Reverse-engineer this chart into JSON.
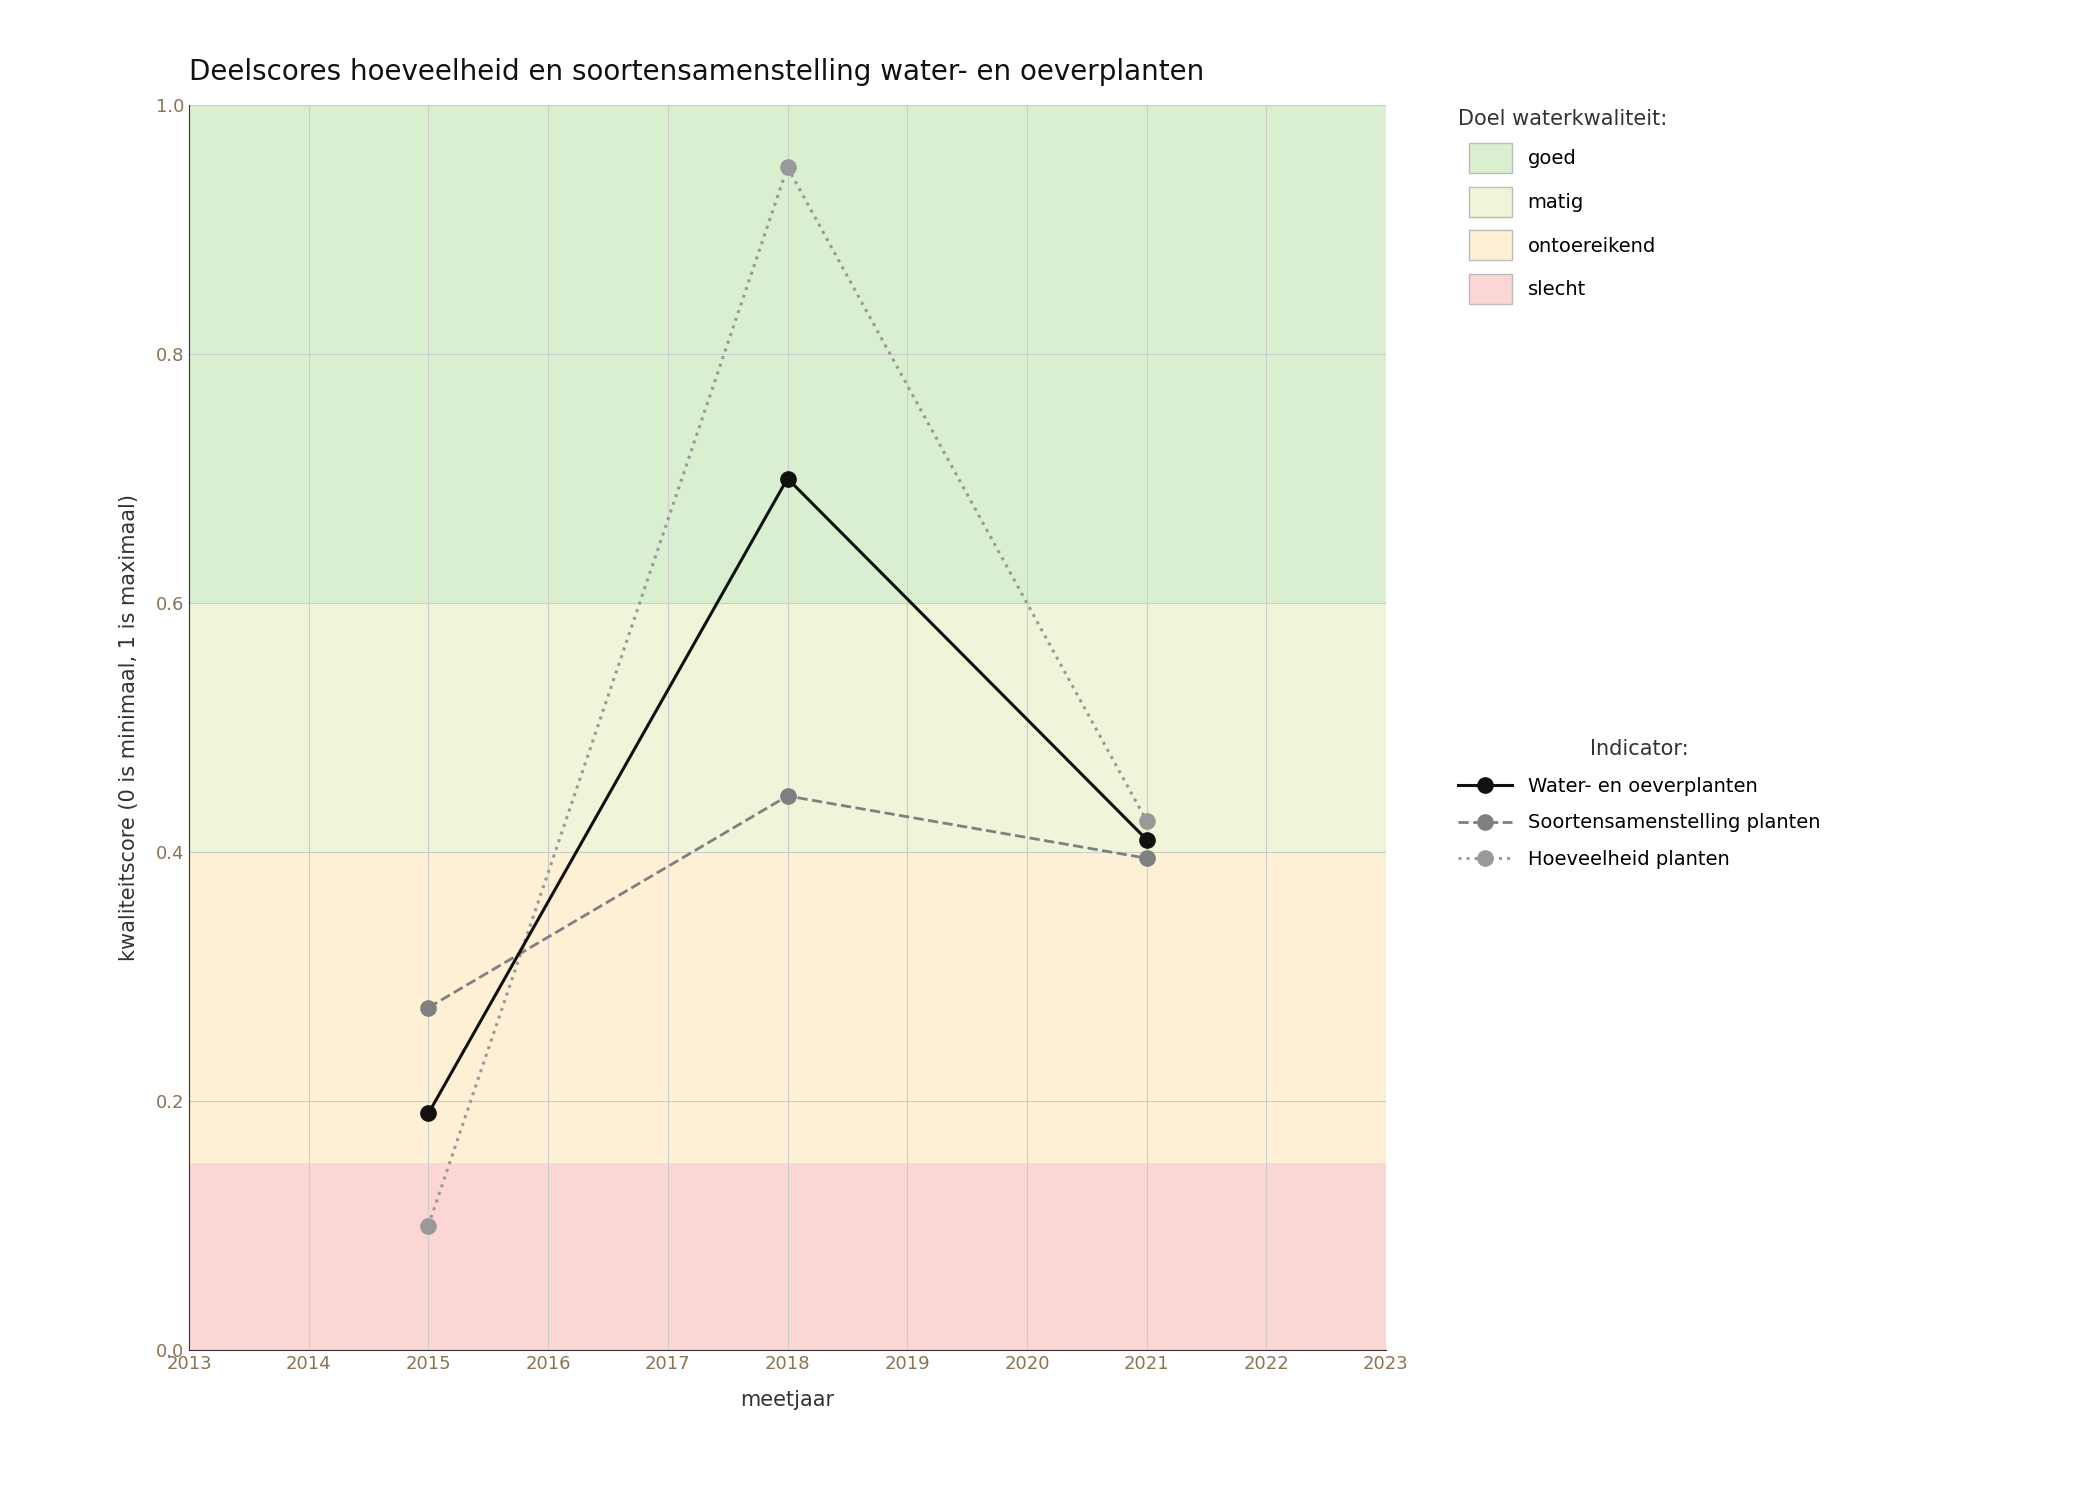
{
  "title": "Deelscores hoeveelheid en soortensamenstelling water- en oeverplanten",
  "xlabel": "meetjaar",
  "ylabel": "kwaliteitscore (0 is minimaal, 1 is maximaal)",
  "xlim": [
    2013,
    2023
  ],
  "ylim": [
    0.0,
    1.0
  ],
  "xticks": [
    2013,
    2014,
    2015,
    2016,
    2017,
    2018,
    2019,
    2020,
    2021,
    2022,
    2023
  ],
  "yticks": [
    0.0,
    0.2,
    0.4,
    0.6,
    0.8,
    1.0
  ],
  "bg_zones": [
    {
      "ymin": 0.6,
      "ymax": 1.0,
      "color": "#daefd0",
      "label": "goed"
    },
    {
      "ymin": 0.4,
      "ymax": 0.6,
      "color": "#eef5d8",
      "label": "matig"
    },
    {
      "ymin": 0.15,
      "ymax": 0.4,
      "color": "#fdf0d5",
      "label": "ontoereikend"
    },
    {
      "ymin": 0.0,
      "ymax": 0.15,
      "color": "#fcd5d5",
      "label": "slecht"
    }
  ],
  "series": [
    {
      "label": "Water- en oeverplanten",
      "x": [
        2015,
        2018,
        2021
      ],
      "y": [
        0.19,
        0.7,
        0.41
      ],
      "color": "#111111",
      "linestyle": "solid",
      "linewidth": 2.2,
      "markersize": 11,
      "marker": "o",
      "zorder": 5
    },
    {
      "label": "Soortensamenstelling planten",
      "x": [
        2015,
        2018,
        2021
      ],
      "y": [
        0.275,
        0.445,
        0.395
      ],
      "color": "#808080",
      "linestyle": "dashed",
      "linewidth": 2.0,
      "markersize": 11,
      "marker": "o",
      "zorder": 4
    },
    {
      "label": "Hoeveelheid planten",
      "x": [
        2015,
        2018,
        2021
      ],
      "y": [
        0.1,
        0.95,
        0.425
      ],
      "color": "#999999",
      "linestyle": "dotted",
      "linewidth": 2.2,
      "markersize": 11,
      "marker": "o",
      "zorder": 3
    }
  ],
  "legend_quality_title": "Doel waterkwaliteit:",
  "legend_indicator_title": "Indicator:",
  "legend_quality_colors": [
    "#daefd0",
    "#eef5d8",
    "#fdf0d5",
    "#fcd5d5"
  ],
  "legend_quality_labels": [
    "goed",
    "matig",
    "ontoereikend",
    "slecht"
  ],
  "grid_color": "#cccccc",
  "background_color": "#ffffff",
  "tick_color": "#8B7355",
  "title_fontsize": 20,
  "axis_label_fontsize": 15,
  "tick_fontsize": 13,
  "legend_fontsize": 14,
  "legend_title_fontsize": 15
}
